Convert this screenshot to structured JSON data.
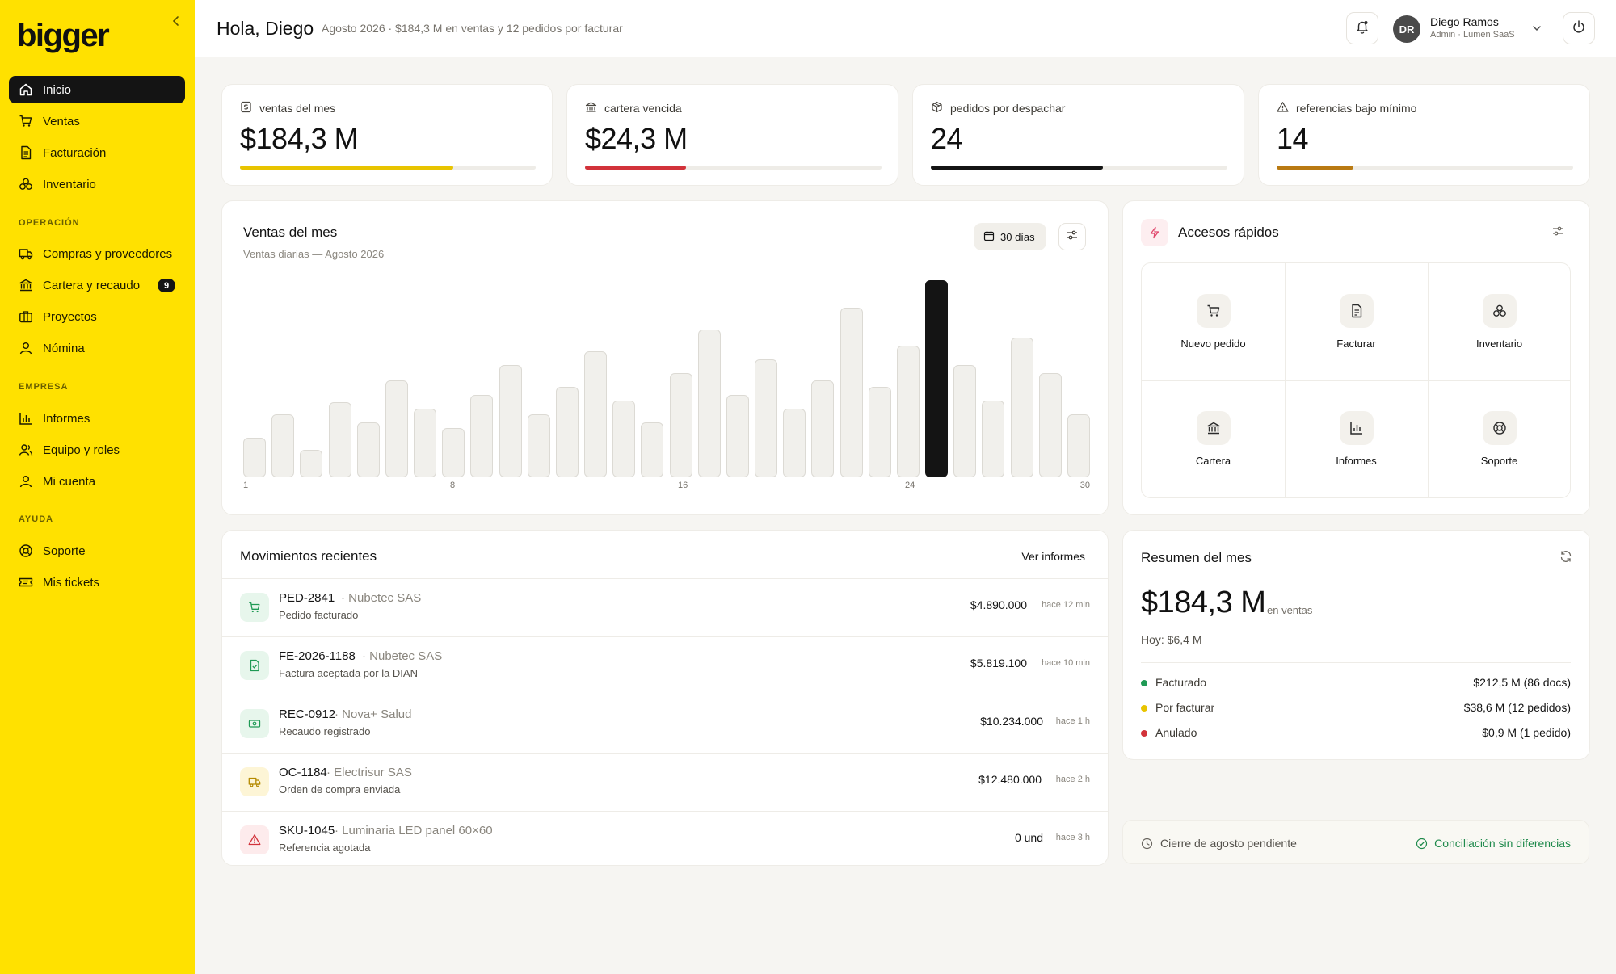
{
  "brand": {
    "logo_text": "bigger",
    "accent": "#ffe100"
  },
  "sidebar": {
    "items": [
      {
        "label": "Inicio",
        "icon": "home-icon",
        "active": true
      },
      {
        "label": "Ventas",
        "icon": "cart-icon"
      },
      {
        "label": "Facturación",
        "icon": "invoice-icon"
      },
      {
        "label": "Inventario",
        "icon": "boxes-icon"
      }
    ],
    "sections": [
      {
        "title": "OPERACIÓN",
        "items": [
          {
            "label": "Compras y proveedores",
            "icon": "truck-icon"
          },
          {
            "label": "Cartera y recaudo",
            "icon": "bank-icon",
            "badge": "9"
          },
          {
            "label": "Proyectos",
            "icon": "briefcase-icon"
          },
          {
            "label": "Nómina",
            "icon": "user-icon"
          }
        ]
      },
      {
        "title": "EMPRESA",
        "items": [
          {
            "label": "Informes",
            "icon": "bar-chart-icon"
          },
          {
            "label": "Equipo y roles",
            "icon": "users-icon"
          },
          {
            "label": "Mi cuenta",
            "icon": "user-icon"
          }
        ]
      },
      {
        "title": "AYUDA",
        "items": [
          {
            "label": "Soporte",
            "icon": "lifebuoy-icon"
          },
          {
            "label": "Mis tickets",
            "icon": "ticket-icon"
          }
        ]
      }
    ]
  },
  "header": {
    "greeting": "Hola, Diego",
    "subtitle": "Agosto 2026 · $184,3 M en ventas y 12 pedidos por facturar",
    "user_initials": "DR",
    "user_name": "Diego Ramos",
    "user_role": "Admin · Lumen SaaS"
  },
  "kpis": [
    {
      "label": "ventas del mes",
      "value": "$184,3 M",
      "progress": 0.72,
      "color": "#e8c400",
      "icon": "dollar-doc-icon"
    },
    {
      "label": "cartera vencida",
      "value": "$24,3 M",
      "progress": 0.34,
      "color": "#d2323a",
      "icon": "bank-icon"
    },
    {
      "label": "pedidos por despachar",
      "value": "24",
      "progress": 0.58,
      "color": "#141414",
      "icon": "package-icon"
    },
    {
      "label": "referencias bajo mínimo",
      "value": "14",
      "progress": 0.26,
      "color": "#b97a12",
      "icon": "warning-icon"
    }
  ],
  "sales_chart": {
    "title": "Ventas del mes",
    "subtitle": "Ventas diarias — Agosto 2026",
    "range_label": "30 días"
  },
  "chart_data": {
    "type": "bar",
    "categories": [
      "1",
      "2",
      "3",
      "4",
      "5",
      "6",
      "7",
      "8",
      "9",
      "10",
      "11",
      "12",
      "13",
      "14",
      "15",
      "16",
      "17",
      "18",
      "19",
      "20",
      "21",
      "22",
      "23",
      "24",
      "25",
      "26",
      "27",
      "28",
      "29",
      "30"
    ],
    "x_tick_labels": [
      "1",
      "8",
      "16",
      "24",
      "30"
    ],
    "values": [
      20,
      32,
      14,
      38,
      28,
      49,
      35,
      25,
      42,
      57,
      32,
      46,
      64,
      39,
      28,
      53,
      75,
      42,
      60,
      35,
      49,
      86,
      46,
      67,
      100,
      57,
      39,
      71,
      53,
      32
    ],
    "highlight_index": 24,
    "highlight_color": "#141414",
    "bar_color": "#f1f0ec",
    "grid": false
  },
  "quick_access": {
    "title": "Accesos rápidos",
    "items": [
      {
        "label": "Nuevo pedido",
        "icon": "cart-icon"
      },
      {
        "label": "Facturar",
        "icon": "invoice-icon"
      },
      {
        "label": "Inventario",
        "icon": "boxes-icon"
      },
      {
        "label": "Cartera",
        "icon": "bank-icon"
      },
      {
        "label": "Informes",
        "icon": "bar-chart-icon"
      },
      {
        "label": "Soporte",
        "icon": "lifebuoy-icon"
      }
    ]
  },
  "movements": {
    "title": "Movimientos recientes",
    "link_label": "Ver informes",
    "rows": [
      {
        "code": "PED-2841",
        "party": " · Nubetec SAS",
        "desc": "Pedido facturado",
        "amount": "$4.890.000",
        "time": "hace 12 min",
        "icon": "cart-icon",
        "tone": "green"
      },
      {
        "code": "FE-2026-1188",
        "party": " · Nubetec SAS",
        "desc": "Factura aceptada por la DIAN",
        "amount": "$5.819.100",
        "time": "hace 10 min",
        "icon": "invoice-check-icon",
        "tone": "green"
      },
      {
        "code": "REC-0912",
        "party": " · Nova+ Salud",
        "desc": "Recaudo registrado",
        "amount": "$10.234.000",
        "time": "hace 1 h",
        "icon": "cash-icon",
        "tone": "green"
      },
      {
        "code": "OC-1184",
        "party": " · Electrisur SAS",
        "desc": "Orden de compra enviada",
        "amount": "$12.480.000",
        "time": "hace 2 h",
        "icon": "truck-icon",
        "tone": "yellow"
      },
      {
        "code": "SKU-1045",
        "party": " · Luminaria LED panel 60×60",
        "desc": "Referencia agotada",
        "amount": "0 und",
        "time": "hace 3 h",
        "icon": "warning-icon",
        "tone": "red"
      }
    ]
  },
  "summary": {
    "title": "Resumen del mes",
    "total": "$184,3 M",
    "total_suffix": "en ventas",
    "today": "Hoy: $6,4 M",
    "rows": [
      {
        "label": "Facturado",
        "value": "$212,5 M (86 docs)",
        "color": "#1f9a55"
      },
      {
        "label": "Por facturar",
        "value": "$38,6 M (12 pedidos)",
        "color": "#e8c400"
      },
      {
        "label": "Anulado",
        "value": "$0,9 M (1 pedido)",
        "color": "#d2323a"
      }
    ]
  },
  "footer": {
    "pending_label": "Cierre de agosto pendiente",
    "status_label": "Conciliación sin diferencias",
    "status_color": "#1f8a4c"
  }
}
